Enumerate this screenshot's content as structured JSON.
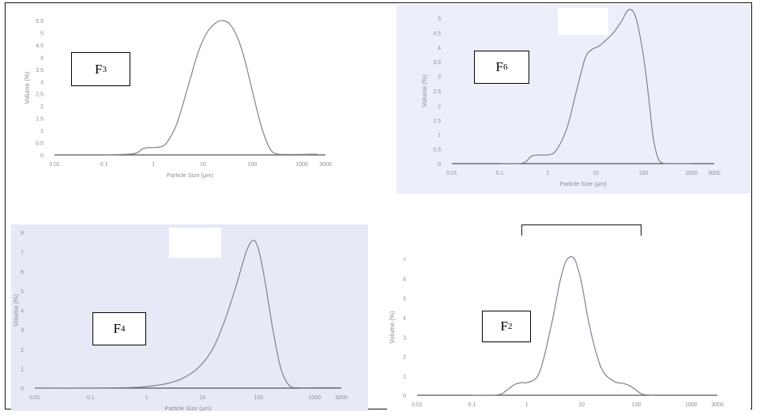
{
  "chart_data": [
    {
      "type": "line",
      "panel_label": "F",
      "panel_sub": "3",
      "xlabel": "Particle Size (μm)",
      "ylabel": "Volume (%)",
      "x_scale": "log",
      "xlim": [
        0.01,
        3000
      ],
      "ylim": [
        0,
        5.5
      ],
      "x_ticks": [
        "0.01",
        "0.1",
        "1",
        "10",
        "100",
        "1000",
        "3000"
      ],
      "y_ticks": [
        "0",
        "0.5",
        "1",
        "1.5",
        "2",
        "2.5",
        "3",
        "3.5",
        "4",
        "4.5",
        "5",
        "5.5"
      ],
      "series": [
        {
          "x": [
            0.1,
            0.4,
            0.6,
            0.8,
            1,
            1.5,
            2,
            3,
            5,
            8,
            12,
            18,
            25,
            35,
            50,
            70,
            100,
            150,
            220,
            300,
            500,
            1000,
            2000
          ],
          "y": [
            0.0,
            0.05,
            0.25,
            0.3,
            0.3,
            0.35,
            0.6,
            1.3,
            2.8,
            4.2,
            5.0,
            5.4,
            5.5,
            5.35,
            4.8,
            3.9,
            2.6,
            1.2,
            0.3,
            0.05,
            0.02,
            0.02,
            0.03
          ]
        }
      ]
    },
    {
      "type": "line",
      "panel_label": "F",
      "panel_sub": "6",
      "xlabel": "Particle Size (μm)",
      "ylabel": "Volume (%)",
      "x_scale": "log",
      "xlim": [
        0.01,
        3000
      ],
      "ylim": [
        0,
        5
      ],
      "x_ticks": [
        "0.01",
        "0.1",
        "1",
        "10",
        "100",
        "1000",
        "3000"
      ],
      "y_ticks": [
        "0",
        "0.5",
        "1",
        "1.5",
        "2",
        "2.5",
        "3",
        "3.5",
        "4",
        "4.5",
        "5"
      ],
      "series": [
        {
          "x": [
            0.1,
            0.3,
            0.45,
            0.6,
            1,
            1.5,
            2.5,
            4,
            6,
            8,
            12,
            18,
            25,
            35,
            50,
            70,
            100,
            130,
            160,
            200,
            250,
            400,
            1000
          ],
          "y": [
            0.0,
            0.02,
            0.25,
            0.3,
            0.3,
            0.45,
            1.2,
            2.5,
            3.6,
            3.9,
            4.05,
            4.3,
            4.55,
            4.9,
            5.3,
            5.0,
            3.7,
            2.2,
            0.9,
            0.2,
            0.02,
            0.0,
            0.0
          ]
        }
      ]
    },
    {
      "type": "line",
      "panel_label": "F",
      "panel_sub": "4",
      "xlabel": "Particle Size (μm)",
      "ylabel": "Volume (%)",
      "x_scale": "log",
      "xlim": [
        0.01,
        3000
      ],
      "ylim": [
        0,
        8
      ],
      "x_ticks": [
        "0.01",
        "0.1",
        "1",
        "10",
        "100",
        "1000",
        "3000"
      ],
      "y_ticks": [
        "0",
        "1",
        "2",
        "3",
        "4",
        "5",
        "6",
        "7",
        "8"
      ],
      "series": [
        {
          "x": [
            0.01,
            0.1,
            0.4,
            0.7,
            1,
            2,
            4,
            8,
            15,
            25,
            40,
            60,
            80,
            100,
            130,
            180,
            250,
            350,
            500,
            1000,
            3000
          ],
          "y": [
            0.0,
            0.0,
            0.02,
            0.05,
            0.08,
            0.2,
            0.45,
            1.0,
            2.0,
            3.5,
            5.3,
            7.0,
            7.6,
            7.1,
            5.5,
            3.0,
            1.0,
            0.15,
            0.02,
            0.02,
            0.02
          ]
        }
      ]
    },
    {
      "type": "line",
      "panel_label": "F",
      "panel_sub": "2",
      "xlabel": "Particle Size (μm)",
      "ylabel": "Volume (%)",
      "x_scale": "log",
      "xlim": [
        0.01,
        3000
      ],
      "ylim": [
        0,
        7
      ],
      "x_ticks": [
        "0.01",
        "0.1",
        "1",
        "10",
        "100",
        "1000",
        "3000"
      ],
      "y_ticks": [
        "0",
        "1",
        "2",
        "3",
        "4",
        "5",
        "6",
        "7"
      ],
      "series": [
        {
          "x": [
            0.1,
            0.3,
            0.45,
            0.6,
            0.8,
            1,
            1.5,
            2,
            3,
            4,
            5,
            6,
            7,
            8,
            10,
            13,
            18,
            25,
            40,
            60,
            80,
            100,
            130,
            200
          ],
          "y": [
            0.0,
            0.02,
            0.3,
            0.55,
            0.65,
            0.65,
            0.9,
            1.8,
            4.0,
            5.8,
            6.8,
            7.1,
            7.1,
            6.8,
            5.8,
            4.0,
            2.3,
            1.2,
            0.7,
            0.6,
            0.45,
            0.25,
            0.05,
            0.0
          ]
        }
      ]
    }
  ]
}
